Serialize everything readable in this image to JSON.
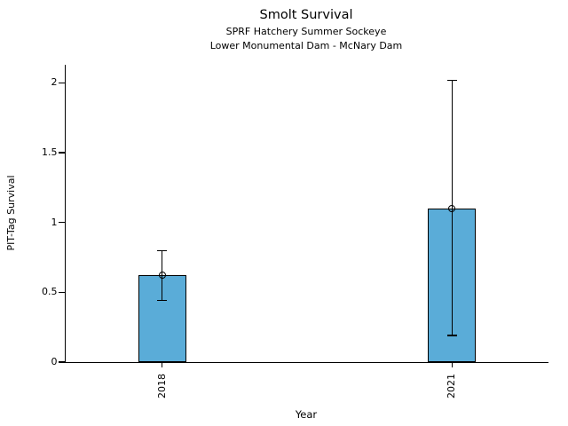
{
  "chart_data": {
    "type": "bar",
    "title": "Smolt Survival",
    "subtitles": [
      "SPRF Hatchery Summer Sockeye",
      "Lower Monumental Dam - McNary Dam"
    ],
    "xlabel": "Year",
    "ylabel": "PIT-Tag Survival",
    "categories": [
      "2018",
      "2021"
    ],
    "series": [
      {
        "name": "PIT-Tag Survival",
        "values": [
          0.62,
          1.1
        ],
        "error_low": [
          0.44,
          0.19
        ],
        "error_high": [
          0.8,
          2.02
        ]
      }
    ],
    "yticks": [
      0,
      0.5,
      1,
      1.5,
      2
    ],
    "ytick_labels": [
      "0",
      "0.5",
      "1",
      "1.5",
      "2"
    ],
    "ylim": [
      0,
      2.13
    ],
    "xtick_rotation": 90,
    "grid": false,
    "legend_position": "none",
    "bar_color": "#5aacd8",
    "edge_color": "#000000",
    "marker": "open-circle"
  }
}
